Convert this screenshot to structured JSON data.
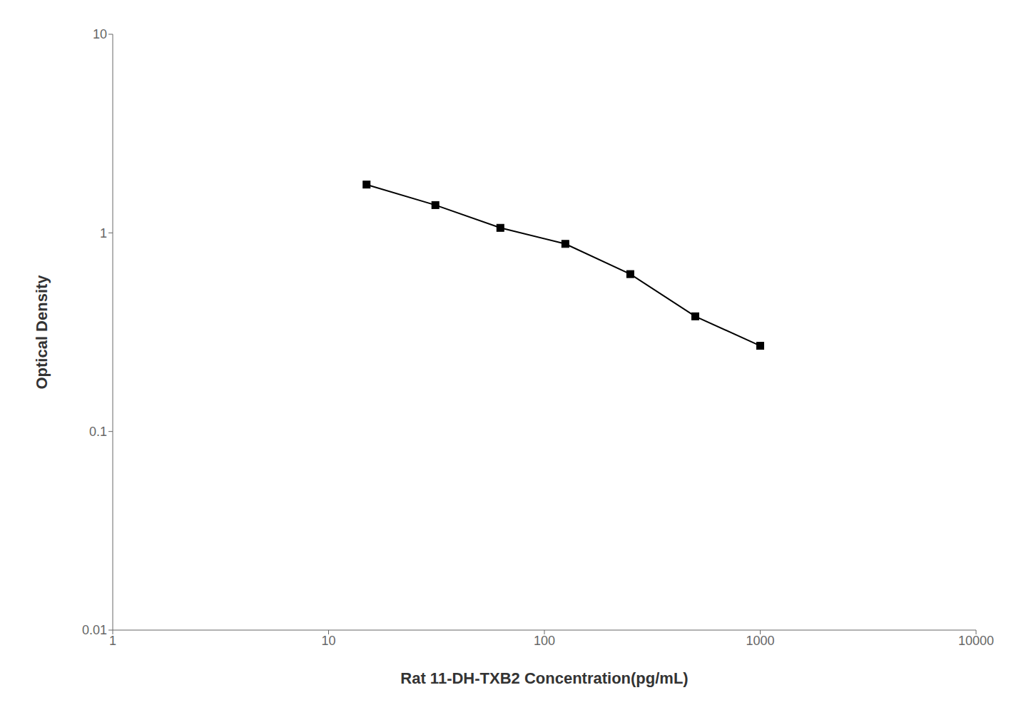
{
  "chart_data": {
    "type": "line",
    "x": [
      15,
      31.25,
      62.5,
      125,
      250,
      500,
      1000
    ],
    "values": [
      1.75,
      1.38,
      1.06,
      0.88,
      0.62,
      0.38,
      0.27
    ],
    "xlabel": "Rat 11-DH-TXB2 Concentration(pg/mL)",
    "ylabel": "Optical Density",
    "xlim": [
      1,
      10000
    ],
    "ylim": [
      0.01,
      10
    ],
    "xticks": [
      1,
      10,
      100,
      1000,
      10000
    ],
    "yticks": [
      0.01,
      0.1,
      1,
      10
    ],
    "log": true,
    "grid": false,
    "color": "#000000",
    "marker": "square"
  }
}
